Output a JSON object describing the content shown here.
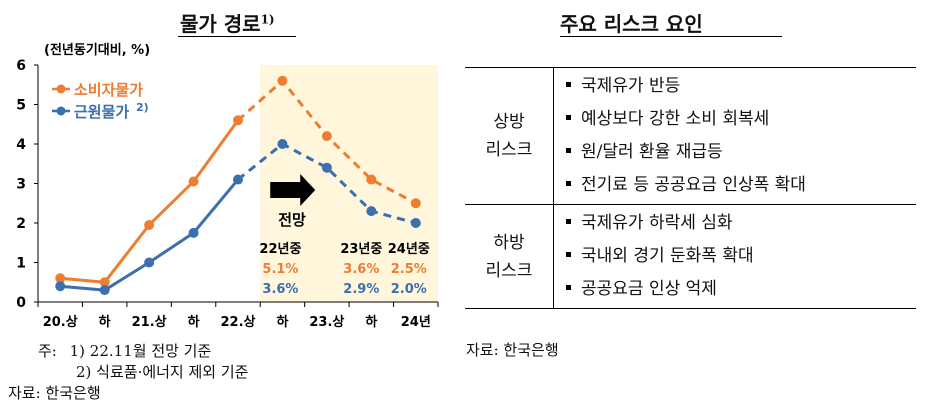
{
  "chart_data": {
    "type": "line",
    "title": "물가 경로",
    "title_note": "1)",
    "ylabel": "(전년동기대비, %)",
    "ylim": [
      0,
      6
    ],
    "yticks": [
      "0",
      "1",
      "2",
      "3",
      "4",
      "5",
      "6"
    ],
    "categories": [
      "20.상",
      "하",
      "21.상",
      "하",
      "22.상",
      "하",
      "23.상",
      "하",
      "24년"
    ],
    "series": [
      {
        "name": "소비자물가",
        "color": "#ED7D31",
        "values": [
          0.6,
          0.5,
          1.95,
          3.05,
          4.6,
          5.6,
          4.2,
          3.1,
          2.5
        ],
        "forecast_from": 4
      },
      {
        "name": "근원물가",
        "note": "2)",
        "color": "#3C6FAE",
        "values": [
          0.4,
          0.3,
          1.0,
          1.75,
          3.1,
          4.0,
          3.4,
          2.3,
          2.0
        ],
        "forecast_from": 4
      }
    ],
    "forecast_label": "전망",
    "forecast_shade": "#FFF6DC",
    "forecast_table": {
      "headers": [
        "22년중",
        "23년중",
        "24년중"
      ],
      "rows": [
        {
          "series": "소비자물가",
          "values": [
            "5.1%",
            "3.6%",
            "2.5%"
          ]
        },
        {
          "series": "근원물가",
          "values": [
            "3.6%",
            "2.9%",
            "2.0%"
          ]
        }
      ]
    },
    "grid": false,
    "legend": "top-left"
  },
  "notes": {
    "prefix": "주:",
    "note1": "1) 22.11월 전망 기준",
    "note2": "2) 식료품·에너지 제외 기준",
    "source": "자료: 한국은행"
  },
  "risk": {
    "title": "주요 리스크 요인",
    "upside": {
      "label_line1": "상방",
      "label_line2": "리스크",
      "items": [
        "국제유가 반등",
        "예상보다 강한 소비 회복세",
        "원/달러 환율 재급등",
        "전기료 등 공공요금 인상폭 확대"
      ]
    },
    "downside": {
      "label_line1": "하방",
      "label_line2": "리스크",
      "items": [
        "국제유가 하락세 심화",
        "국내외 경기 둔화폭 확대",
        "공공요금 인상 억제"
      ]
    },
    "source": "자료: 한국은행"
  }
}
